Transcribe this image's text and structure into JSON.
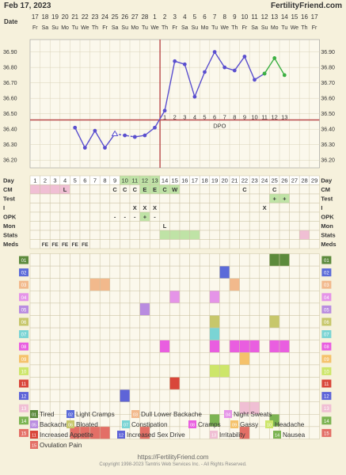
{
  "header": {
    "date": "Feb 17, 2023",
    "site": "FertilityFriend.com"
  },
  "date_row": {
    "label": "Date",
    "days": [
      "17",
      "18",
      "19",
      "20",
      "21",
      "22",
      "23",
      "24",
      "25",
      "26",
      "27",
      "28",
      "1",
      "2",
      "3",
      "4",
      "5",
      "6",
      "7",
      "8",
      "9",
      "10",
      "11",
      "12",
      "13",
      "14",
      "15",
      "16",
      "17"
    ],
    "weekdays": [
      "Fr",
      "Sa",
      "Su",
      "Mo",
      "Tu",
      "We",
      "Th",
      "Fr",
      "Sa",
      "Su",
      "Mo",
      "Tu",
      "We",
      "Th",
      "Fr",
      "Sa",
      "Su",
      "Mo",
      "Tu",
      "We",
      "Th",
      "Fr",
      "Sa",
      "Su",
      "Mo",
      "Tu",
      "We",
      "Th",
      "Fr"
    ]
  },
  "chart_data": {
    "type": "line",
    "ylim": [
      36.15,
      36.98
    ],
    "yticks": [
      "36.20",
      "36.30",
      "36.40",
      "36.50",
      "36.60",
      "36.70",
      "36.80",
      "36.90"
    ],
    "coverline": 36.46,
    "ovulation_day": 14,
    "dpo_label": "DPO",
    "dpo_numbers": [
      "1",
      "2",
      "3",
      "4",
      "5",
      "6",
      "7",
      "8",
      "9",
      "10",
      "11",
      "12",
      "13"
    ],
    "series": [
      {
        "color": "#5a4fcf",
        "points": [
          [
            5,
            36.41
          ],
          [
            6,
            36.28
          ],
          [
            7,
            36.39
          ],
          [
            8,
            36.28
          ],
          [
            9,
            36.37
          ]
        ]
      },
      {
        "color": "#5a4fcf",
        "dashed": true,
        "open": true,
        "points": [
          [
            9,
            36.37
          ],
          [
            10,
            36.36
          ],
          [
            11,
            36.35
          ]
        ]
      },
      {
        "color": "#5a4fcf",
        "points": [
          [
            11,
            36.35
          ],
          [
            12,
            36.36
          ],
          [
            13,
            36.41
          ],
          [
            14,
            36.52
          ],
          [
            15,
            36.84
          ],
          [
            16,
            36.82
          ],
          [
            17,
            36.61
          ],
          [
            18,
            36.77
          ],
          [
            19,
            36.9
          ],
          [
            20,
            36.8
          ],
          [
            21,
            36.78
          ],
          [
            22,
            36.87
          ],
          [
            23,
            36.72
          ],
          [
            24,
            36.76
          ]
        ]
      },
      {
        "color": "#3cb043",
        "points": [
          [
            24,
            36.76
          ],
          [
            25,
            36.86
          ],
          [
            26,
            36.75
          ]
        ]
      }
    ]
  },
  "rows": {
    "day": {
      "label": "Day",
      "values": [
        "1",
        "2",
        "3",
        "4",
        "5",
        "6",
        "7",
        "8",
        "9",
        "10",
        "11",
        "12",
        "13",
        "14",
        "15",
        "16",
        "17",
        "18",
        "19",
        "20",
        "21",
        "22",
        "23",
        "24",
        "25",
        "26",
        "27",
        "28",
        "29"
      ]
    },
    "cm": {
      "label": "CM",
      "entries": [
        [
          "4",
          "L"
        ],
        [
          "9",
          "C"
        ],
        [
          "10",
          "C"
        ],
        [
          "11",
          "C"
        ],
        [
          "12",
          "E"
        ],
        [
          "13",
          "E"
        ],
        [
          "14",
          "C"
        ],
        [
          "15",
          "W"
        ],
        [
          "22",
          "C"
        ],
        [
          "25",
          "C"
        ]
      ]
    },
    "test": {
      "label": "Test",
      "entries": [
        [
          "25",
          "+"
        ],
        [
          "26",
          "+"
        ]
      ]
    },
    "i": {
      "label": "I",
      "entries": [
        [
          "11",
          "X"
        ],
        [
          "12",
          "X"
        ],
        [
          "13",
          "X"
        ],
        [
          "24",
          "X"
        ]
      ]
    },
    "opk": {
      "label": "OPK",
      "entries": [
        [
          "9",
          "-"
        ],
        [
          "10",
          "-"
        ],
        [
          "11",
          "-"
        ],
        [
          "12",
          "+"
        ],
        [
          "13",
          "-"
        ]
      ]
    },
    "mon": {
      "label": "Mon",
      "entries": [
        [
          "14",
          "L"
        ]
      ]
    },
    "stats": {
      "label": "Stats"
    },
    "meds": {
      "label": "Meds",
      "entries": [
        [
          "2",
          "FE"
        ],
        [
          "3",
          "FE"
        ],
        [
          "4",
          "FE"
        ],
        [
          "5",
          "FE"
        ],
        [
          "6",
          "FE"
        ]
      ]
    }
  },
  "symptoms": [
    {
      "num": "01",
      "name": "Tired",
      "color": "#5c8a3c"
    },
    {
      "num": "02",
      "name": "Light Cramps",
      "color": "#5b6bd9"
    },
    {
      "num": "03",
      "name": "Dull Lower Backache",
      "color": "#f2b98c"
    },
    {
      "num": "04",
      "name": "Night Sweats",
      "color": "#e594e8"
    },
    {
      "num": "05",
      "name": "Backache",
      "color": "#b98ce0"
    },
    {
      "num": "06",
      "name": "Bloated",
      "color": "#c7c76b"
    },
    {
      "num": "07",
      "name": "Constipation",
      "color": "#7ad4d4"
    },
    {
      "num": "08",
      "name": "Cramps",
      "color": "#e95ee0"
    },
    {
      "num": "09",
      "name": "Gassy",
      "color": "#f5c26b"
    },
    {
      "num": "10",
      "name": "Headache",
      "color": "#cde66a"
    },
    {
      "num": "11",
      "name": "Increased Appetite",
      "color": "#d9463a"
    },
    {
      "num": "12",
      "name": "Increased Sex Drive",
      "color": "#5e64d8"
    },
    {
      "num": "13",
      "name": "Irritability",
      "color": "#f0bfd4"
    },
    {
      "num": "14",
      "name": "Nausea",
      "color": "#7cb452"
    },
    {
      "num": "15",
      "name": "Ovulation Pain",
      "color": "#e36f66"
    }
  ],
  "footer": {
    "url": "https://FertilityFriend.com",
    "copyright": "Copyright 1998-2023 Tamtris Web Services Inc. - All Rights Reserved."
  }
}
